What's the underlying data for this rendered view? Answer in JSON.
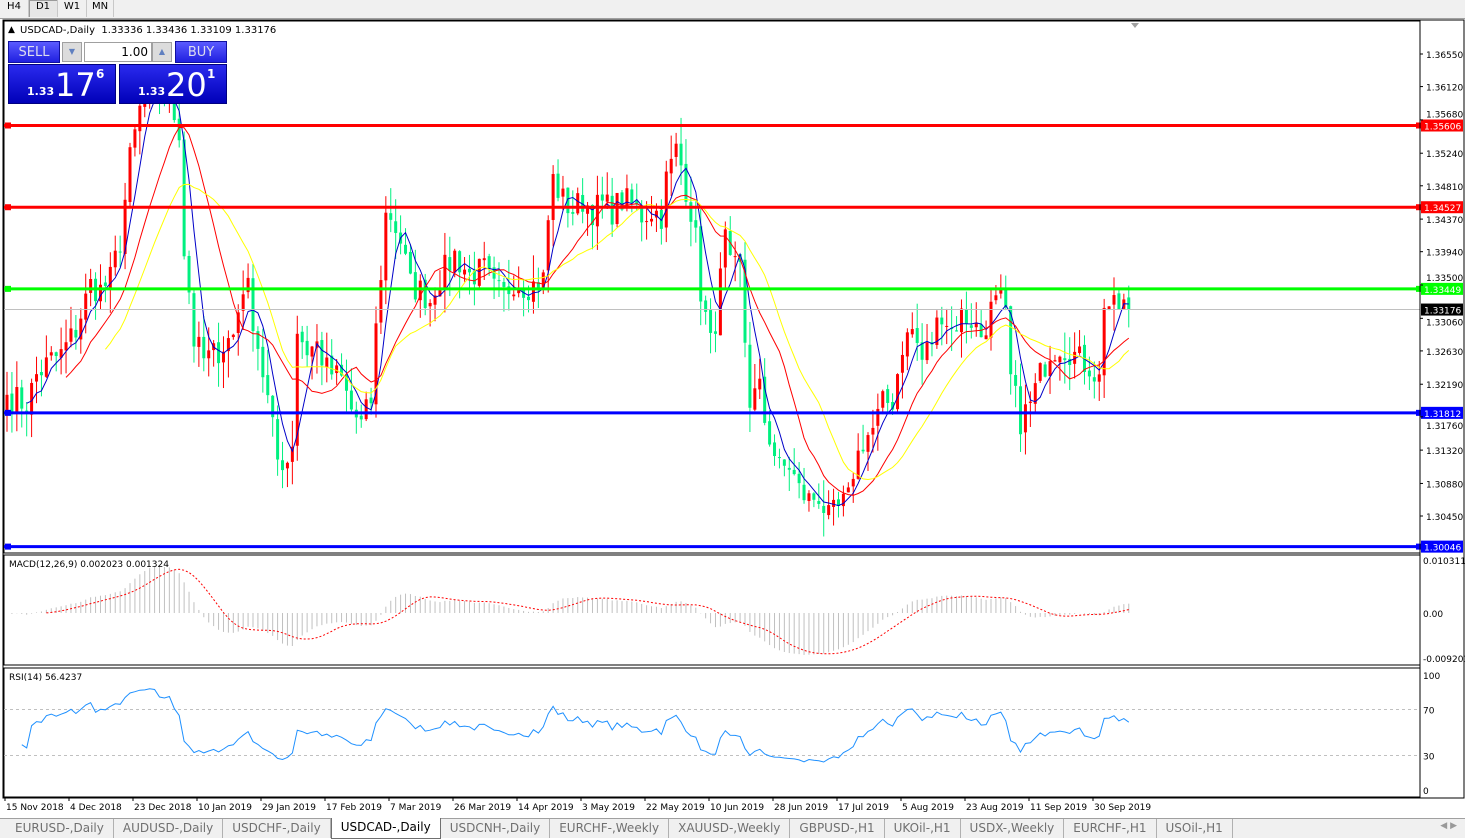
{
  "toolbar": {
    "timeframes": [
      {
        "label": "H4",
        "active": false
      },
      {
        "label": "D1",
        "active": true
      },
      {
        "label": "W1",
        "active": false
      },
      {
        "label": "MN",
        "active": false
      }
    ]
  },
  "chart": {
    "header": "USDCAD-,Daily  1.33336 1.33436 1.33109 1.33176",
    "symbol": "USDCAD-,Daily",
    "ohlc": {
      "open": "1.33336",
      "high": "1.33436",
      "low": "1.33109",
      "close": "1.33176"
    },
    "current_price": "1.33176",
    "price_axis": [
      "1.36550",
      "1.36120",
      "1.35680",
      "1.35240",
      "1.34810",
      "1.34370",
      "1.33940",
      "1.33500",
      "1.33060",
      "1.32630",
      "1.32190",
      "1.31760",
      "1.31320",
      "1.30880",
      "1.30450"
    ],
    "horizontal_lines": [
      {
        "price": "1.35606",
        "color": "#ff0000"
      },
      {
        "price": "1.34527",
        "color": "#ff0000"
      },
      {
        "price": "1.33449",
        "color": "#00ff00"
      },
      {
        "price": "1.31812",
        "color": "#0000ff"
      },
      {
        "price": "1.30046",
        "color": "#0000ff"
      }
    ],
    "colors": {
      "bull": "#ff0000",
      "bear": "#00f080",
      "ma_fast": "#0000c8",
      "ma_mid": "#ff0000",
      "ma_slow": "#ffff00",
      "macd_hist": "#c0c0c0",
      "macd_signal": "#ff0000",
      "rsi": "#1e90ff"
    },
    "date_axis": [
      "15 Nov 2018",
      "4 Dec 2018",
      "23 Dec 2018",
      "10 Jan 2019",
      "29 Jan 2019",
      "17 Feb 2019",
      "7 Mar 2019",
      "26 Mar 2019",
      "14 Apr 2019",
      "3 May 2019",
      "22 May 2019",
      "10 Jun 2019",
      "28 Jun 2019",
      "17 Jul 2019",
      "5 Aug 2019",
      "23 Aug 2019",
      "11 Sep 2019",
      "30 Sep 2019"
    ],
    "close_keypoints": [
      [
        0,
        1.3205
      ],
      [
        4,
        1.3192
      ],
      [
        6,
        1.3231
      ],
      [
        9,
        1.3251
      ],
      [
        11,
        1.3258
      ],
      [
        14,
        1.3291
      ],
      [
        17,
        1.335
      ],
      [
        19,
        1.3343
      ],
      [
        21,
        1.3357
      ],
      [
        23,
        1.3409
      ],
      [
        25,
        1.3515
      ],
      [
        27,
        1.3581
      ],
      [
        29,
        1.3601
      ],
      [
        33,
        1.3594
      ],
      [
        35,
        1.3555
      ],
      [
        36,
        1.3396
      ],
      [
        37,
        1.3343
      ],
      [
        38,
        1.3277
      ],
      [
        40,
        1.3251
      ],
      [
        42,
        1.3258
      ],
      [
        44,
        1.3271
      ],
      [
        46,
        1.3284
      ],
      [
        48,
        1.335
      ],
      [
        49,
        1.3343
      ],
      [
        51,
        1.3271
      ],
      [
        53,
        1.3198
      ],
      [
        55,
        1.3119
      ],
      [
        57,
        1.3119
      ],
      [
        58,
        1.3145
      ],
      [
        59,
        1.3291
      ],
      [
        61,
        1.3264
      ],
      [
        63,
        1.3271
      ],
      [
        65,
        1.3238
      ],
      [
        68,
        1.3225
      ],
      [
        70,
        1.3185
      ],
      [
        72,
        1.3165
      ],
      [
        74,
        1.3198
      ],
      [
        75,
        1.3291
      ],
      [
        77,
        1.3442
      ],
      [
        78,
        1.3442
      ],
      [
        80,
        1.3409
      ],
      [
        82,
        1.335
      ],
      [
        84,
        1.3343
      ],
      [
        86,
        1.333
      ],
      [
        87,
        1.335
      ],
      [
        89,
        1.337
      ],
      [
        91,
        1.339
      ],
      [
        94,
        1.3363
      ],
      [
        97,
        1.337
      ],
      [
        99,
        1.3343
      ],
      [
        101,
        1.3337
      ],
      [
        103,
        1.3357
      ],
      [
        105,
        1.335
      ],
      [
        107,
        1.335
      ],
      [
        109,
        1.3357
      ],
      [
        110,
        1.3436
      ],
      [
        111,
        1.3489
      ],
      [
        113,
        1.3462
      ],
      [
        115,
        1.3449
      ],
      [
        117,
        1.3462
      ],
      [
        119,
        1.3449
      ],
      [
        121,
        1.3456
      ],
      [
        123,
        1.3449
      ],
      [
        125,
        1.3462
      ],
      [
        127,
        1.3456
      ],
      [
        129,
        1.3442
      ],
      [
        131,
        1.3449
      ],
      [
        133,
        1.3442
      ],
      [
        134,
        1.3489
      ],
      [
        136,
        1.3528
      ],
      [
        137,
        1.3508
      ],
      [
        139,
        1.3449
      ],
      [
        140,
        1.3409
      ],
      [
        141,
        1.3343
      ],
      [
        143,
        1.3271
      ],
      [
        144,
        1.3304
      ],
      [
        146,
        1.3409
      ],
      [
        147,
        1.337
      ],
      [
        149,
        1.337
      ],
      [
        150,
        1.3277
      ],
      [
        151,
        1.3198
      ],
      [
        153,
        1.3211
      ],
      [
        154,
        1.3172
      ],
      [
        157,
        1.3106
      ],
      [
        159,
        1.3112
      ],
      [
        161,
        1.3079
      ],
      [
        163,
        1.3066
      ],
      [
        165,
        1.3073
      ],
      [
        167,
        1.304
      ],
      [
        169,
        1.3053
      ],
      [
        171,
        1.3066
      ],
      [
        172,
        1.3106
      ],
      [
        174,
        1.3145
      ],
      [
        176,
        1.3159
      ],
      [
        178,
        1.3192
      ],
      [
        180,
        1.3198
      ],
      [
        182,
        1.3271
      ],
      [
        184,
        1.3291
      ],
      [
        186,
        1.3251
      ],
      [
        188,
        1.3277
      ],
      [
        190,
        1.3317
      ],
      [
        192,
        1.3291
      ],
      [
        194,
        1.331
      ],
      [
        196,
        1.3304
      ],
      [
        198,
        1.3284
      ],
      [
        200,
        1.3317
      ],
      [
        202,
        1.333
      ],
      [
        203,
        1.3304
      ],
      [
        204,
        1.3225
      ],
      [
        206,
        1.3172
      ],
      [
        208,
        1.3192
      ],
      [
        210,
        1.3231
      ],
      [
        212,
        1.3264
      ],
      [
        214,
        1.3271
      ],
      [
        216,
        1.3264
      ],
      [
        218,
        1.3251
      ],
      [
        220,
        1.3244
      ],
      [
        222,
        1.3225
      ],
      [
        223,
        1.333
      ],
      [
        225,
        1.3317
      ],
      [
        227,
        1.3324
      ],
      [
        228,
        1.33176
      ]
    ],
    "macd": {
      "label": "MACD(12,26,9) 0.002023 0.001324",
      "axis": [
        "0.010311",
        "0.00",
        "-0.009203"
      ]
    },
    "rsi": {
      "label": "RSI(14) 56.4237",
      "axis": [
        "100",
        "70",
        "30",
        "0"
      ],
      "levels": [
        70,
        30
      ]
    }
  },
  "oneclick": {
    "sell_label": "SELL",
    "buy_label": "BUY",
    "volume": "1.00",
    "sell_price": {
      "prefix": "1.33",
      "big": "17",
      "sup": "6"
    },
    "buy_price": {
      "prefix": "1.33",
      "big": "20",
      "sup": "1"
    }
  },
  "bottom_tabs": [
    {
      "label": "EURUSD-,Daily",
      "active": false
    },
    {
      "label": "AUDUSD-,Daily",
      "active": false
    },
    {
      "label": "USDCHF-,Daily",
      "active": false
    },
    {
      "label": "USDCAD-,Daily",
      "active": true
    },
    {
      "label": "USDCNH-,Daily",
      "active": false
    },
    {
      "label": "EURCHF-,Weekly",
      "active": false
    },
    {
      "label": "XAUUSD-,Weekly",
      "active": false
    },
    {
      "label": "GBPUSD-,H1",
      "active": false
    },
    {
      "label": "UKOil-,H1",
      "active": false
    },
    {
      "label": "USDX-,Weekly",
      "active": false
    },
    {
      "label": "EURCHF-,H1",
      "active": false
    },
    {
      "label": "USOil-,H1",
      "active": false
    }
  ]
}
